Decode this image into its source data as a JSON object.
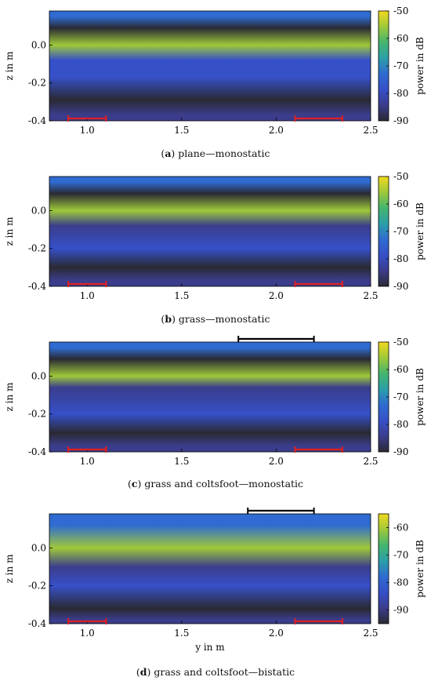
{
  "chart_data": [
    {
      "type": "heatmap",
      "caption_letter": "a",
      "caption_text": "plane—monostatic",
      "xlabel": "",
      "ylabel": "z in m",
      "xlim": [
        0.8,
        2.5
      ],
      "ylim": [
        -0.4,
        0.18
      ],
      "xticks": [
        "1.0",
        "1.5",
        "2.0",
        "2.5"
      ],
      "yticks": [
        "0.0",
        "-0.2",
        "-0.4"
      ],
      "colorbar": {
        "label": "power in dB",
        "range": [
          -90,
          -50
        ],
        "ticks": [
          "-50",
          "-60",
          "-70",
          "-80",
          "-90"
        ]
      },
      "red_markers": [
        [
          0.9,
          1.1
        ],
        [
          2.1,
          2.35
        ]
      ],
      "black_marker": null,
      "bands": [
        {
          "z": 0.15,
          "level": -72
        },
        {
          "z": 0.09,
          "level": -88
        },
        {
          "z": 0.0,
          "level": -55
        },
        {
          "z": -0.08,
          "level": -80
        },
        {
          "z": -0.17,
          "level": -78
        },
        {
          "z": -0.29,
          "level": -90
        },
        {
          "z": -0.37,
          "level": -82
        }
      ]
    },
    {
      "type": "heatmap",
      "caption_letter": "b",
      "caption_text": "grass—monostatic",
      "xlabel": "",
      "ylabel": "z in m",
      "xlim": [
        0.8,
        2.5
      ],
      "ylim": [
        -0.4,
        0.18
      ],
      "xticks": [
        "1.0",
        "1.5",
        "2.0",
        "2.5"
      ],
      "yticks": [
        "0.0",
        "-0.2",
        "-0.4"
      ],
      "colorbar": {
        "label": "power in dB",
        "range": [
          -90,
          -50
        ],
        "ticks": [
          "-50",
          "-60",
          "-70",
          "-80",
          "-90"
        ]
      },
      "red_markers": [
        [
          0.9,
          1.1
        ],
        [
          2.1,
          2.35
        ]
      ],
      "black_marker": null,
      "bands": [
        {
          "z": 0.15,
          "level": -72
        },
        {
          "z": 0.09,
          "level": -88
        },
        {
          "z": 0.0,
          "level": -54
        },
        {
          "z": -0.08,
          "level": -82
        },
        {
          "z": -0.2,
          "level": -78
        },
        {
          "z": -0.3,
          "level": -90
        },
        {
          "z": -0.37,
          "level": -82
        }
      ]
    },
    {
      "type": "heatmap",
      "caption_letter": "c",
      "caption_text": "grass and coltsfoot—monostatic",
      "xlabel": "",
      "ylabel": "z in m",
      "xlim": [
        0.8,
        2.5
      ],
      "ylim": [
        -0.4,
        0.18
      ],
      "xticks": [
        "1.0",
        "1.5",
        "2.0",
        "2.5"
      ],
      "yticks": [
        "0.0",
        "-0.2",
        "-0.4"
      ],
      "colorbar": {
        "label": "power in dB",
        "range": [
          -90,
          -50
        ],
        "ticks": [
          "-50",
          "-60",
          "-70",
          "-80",
          "-90"
        ]
      },
      "red_markers": [
        [
          0.9,
          1.1
        ],
        [
          2.1,
          2.35
        ]
      ],
      "black_marker": [
        1.8,
        2.2
      ],
      "bands": [
        {
          "z": 0.15,
          "level": -72
        },
        {
          "z": 0.09,
          "level": -88
        },
        {
          "z": 0.0,
          "level": -55
        },
        {
          "z": -0.06,
          "level": -82
        },
        {
          "z": -0.2,
          "level": -76
        },
        {
          "z": -0.3,
          "level": -90
        },
        {
          "z": -0.37,
          "level": -82
        }
      ]
    },
    {
      "type": "heatmap",
      "caption_letter": "d",
      "caption_text": "grass and coltsfoot—bistatic",
      "xlabel": "y in m",
      "ylabel": "z in m",
      "xlim": [
        0.8,
        2.5
      ],
      "ylim": [
        -0.4,
        0.18
      ],
      "xticks": [
        "1.0",
        "1.5",
        "2.0",
        "2.5"
      ],
      "yticks": [
        "0.0",
        "-0.2",
        "-0.4"
      ],
      "colorbar": {
        "label": "power in dB",
        "range": [
          -95,
          -55
        ],
        "ticks": [
          "-60",
          "-70",
          "-80",
          "-90"
        ]
      },
      "red_markers": [
        [
          0.9,
          1.1
        ],
        [
          2.1,
          2.35
        ]
      ],
      "black_marker": [
        1.85,
        2.2
      ],
      "bands": [
        {
          "z": 0.12,
          "level": -78
        },
        {
          "z": 0.0,
          "level": -58
        },
        {
          "z": -0.1,
          "level": -92
        },
        {
          "z": -0.2,
          "level": -86
        },
        {
          "z": -0.32,
          "level": -95
        },
        {
          "z": -0.38,
          "level": -90
        }
      ]
    }
  ]
}
